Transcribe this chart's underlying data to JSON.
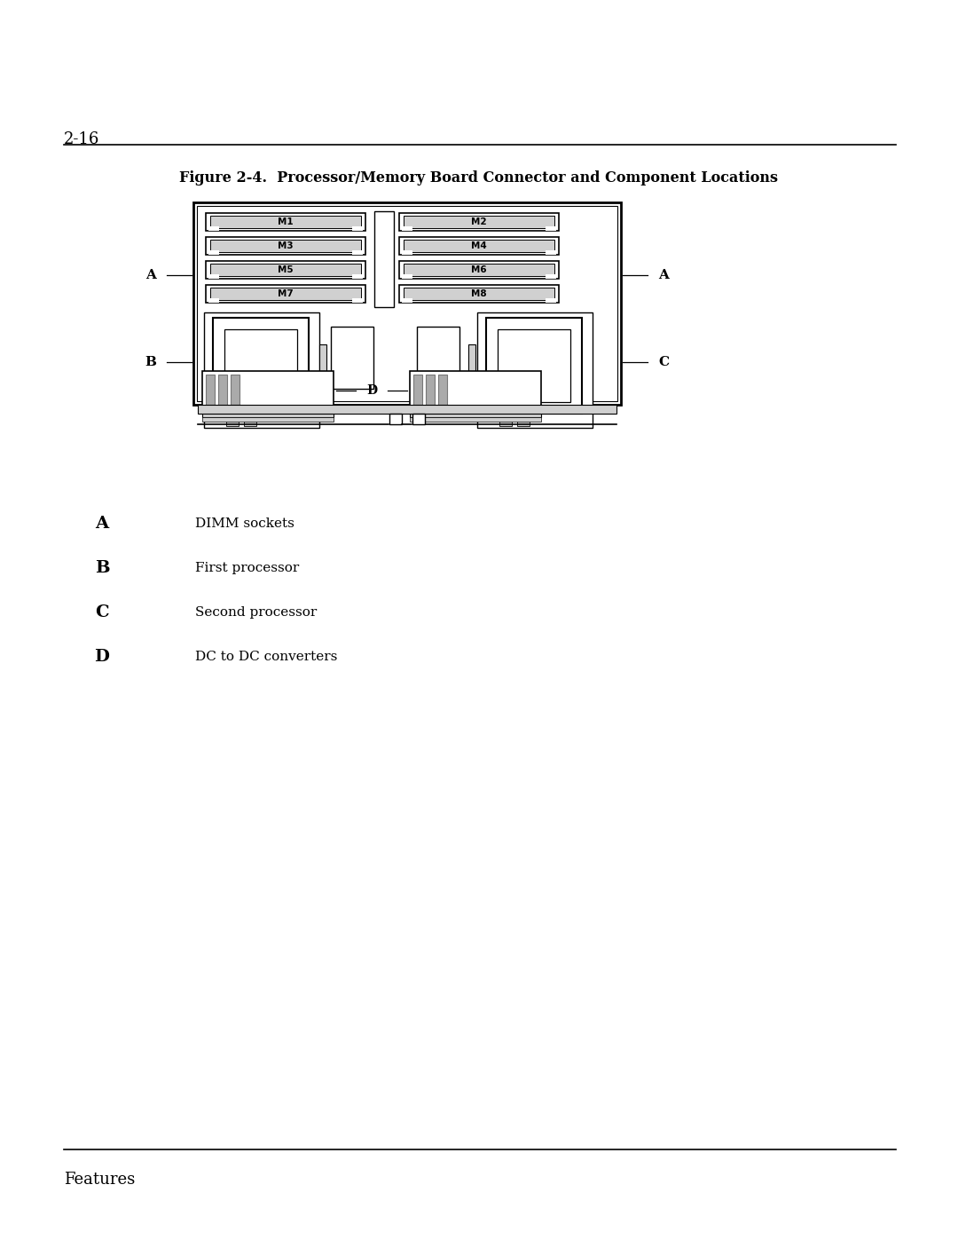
{
  "page_number": "2-16",
  "figure_title": "Figure 2-4.  Processor/Memory Board Connector and Component Locations",
  "legend": [
    {
      "label": "A",
      "description": "DIMM sockets"
    },
    {
      "label": "B",
      "description": "First processor"
    },
    {
      "label": "C",
      "description": "Second processor"
    },
    {
      "label": "D",
      "description": "DC to DC converters"
    }
  ],
  "footer_text": "Features",
  "bg_color": "#ffffff",
  "text_color": "#000000",
  "gray_color": "#aaaaaa",
  "light_gray": "#d0d0d0",
  "dimm_labels_left": [
    "M1",
    "M3",
    "M5",
    "M7"
  ],
  "dimm_labels_right": [
    "M2",
    "M4",
    "M6",
    "M8"
  ]
}
